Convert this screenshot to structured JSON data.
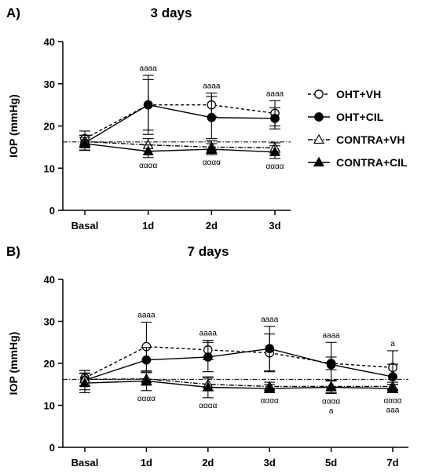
{
  "legend": [
    {
      "label": "OHT+VH",
      "marker": "circle-open",
      "line": "dashed"
    },
    {
      "label": "OHT+CIL",
      "marker": "circle-filled",
      "line": "solid"
    },
    {
      "label": "CONTRA+VH",
      "marker": "triangle-open",
      "line": "dashdot"
    },
    {
      "label": "CONTRA+CIL",
      "marker": "triangle-filled",
      "line": "solid"
    }
  ],
  "chart_data": [
    {
      "type": "line",
      "panel_label": "A)",
      "title": "3 days",
      "ylabel": "IOP (mmHg)",
      "xlabel": "",
      "ylim": [
        0,
        40
      ],
      "yticks": [
        0,
        10,
        20,
        30,
        40
      ],
      "categories": [
        "Basal",
        "1d",
        "2d",
        "3d"
      ],
      "reference_line": 16.2,
      "series": [
        {
          "name": "OHT+VH",
          "values": [
            17.0,
            25.0,
            25.0,
            23.0
          ],
          "errors": [
            1.8,
            6.0,
            2.8,
            3.0
          ]
        },
        {
          "name": "OHT+CIL",
          "values": [
            16.0,
            25.0,
            22.0,
            21.8
          ],
          "errors": [
            1.8,
            7.0,
            5.0,
            2.5
          ]
        },
        {
          "name": "CONTRA+VH",
          "values": [
            16.3,
            15.5,
            15.0,
            14.8
          ],
          "errors": [
            1.5,
            1.5,
            1.5,
            1.2
          ]
        },
        {
          "name": "CONTRA+CIL",
          "values": [
            15.8,
            14.0,
            14.5,
            13.8
          ],
          "errors": [
            1.5,
            1.5,
            1.3,
            1.5
          ]
        }
      ],
      "annotations_above": [
        "",
        "aaaa",
        "aaaa",
        "aaaa"
      ],
      "annotations_below": [
        "",
        "αααα",
        "αααα",
        "αααα"
      ]
    },
    {
      "type": "line",
      "panel_label": "B)",
      "title": "7 days",
      "ylabel": "IOP (mmHg)",
      "xlabel": "",
      "ylim": [
        0,
        40
      ],
      "yticks": [
        0,
        10,
        20,
        30,
        40
      ],
      "categories": [
        "Basal",
        "1d",
        "2d",
        "3d",
        "5d",
        "7d"
      ],
      "reference_line": 16.2,
      "series": [
        {
          "name": "OHT+VH",
          "values": [
            16.5,
            24.0,
            23.2,
            22.5,
            20.0,
            19.0
          ],
          "errors": [
            1.8,
            5.8,
            2.3,
            4.5,
            1.5,
            4.0
          ]
        },
        {
          "name": "OHT+CIL",
          "values": [
            16.0,
            20.8,
            21.5,
            23.5,
            19.7,
            16.8
          ],
          "errors": [
            2.3,
            3.0,
            3.5,
            5.3,
            5.3,
            3.0
          ]
        },
        {
          "name": "CONTRA+VH",
          "values": [
            16.2,
            16.3,
            15.0,
            14.5,
            14.5,
            14.5
          ],
          "errors": [
            1.5,
            1.5,
            1.5,
            1.0,
            1.5,
            1.0
          ]
        },
        {
          "name": "CONTRA+CIL",
          "values": [
            15.3,
            15.8,
            14.3,
            14.0,
            14.3,
            14.0
          ],
          "errors": [
            2.3,
            2.3,
            2.5,
            1.0,
            1.5,
            1.0
          ]
        }
      ],
      "annotations_above": [
        "",
        "aaaa",
        "aaaa",
        "aaaa",
        "aaaa",
        "a"
      ],
      "annotations_below": [
        "",
        "αααα",
        "αααα",
        "αααα",
        "αααα",
        "αααα"
      ],
      "annotations_below2": [
        "",
        "",
        "",
        "",
        "a",
        "aaa"
      ]
    }
  ]
}
